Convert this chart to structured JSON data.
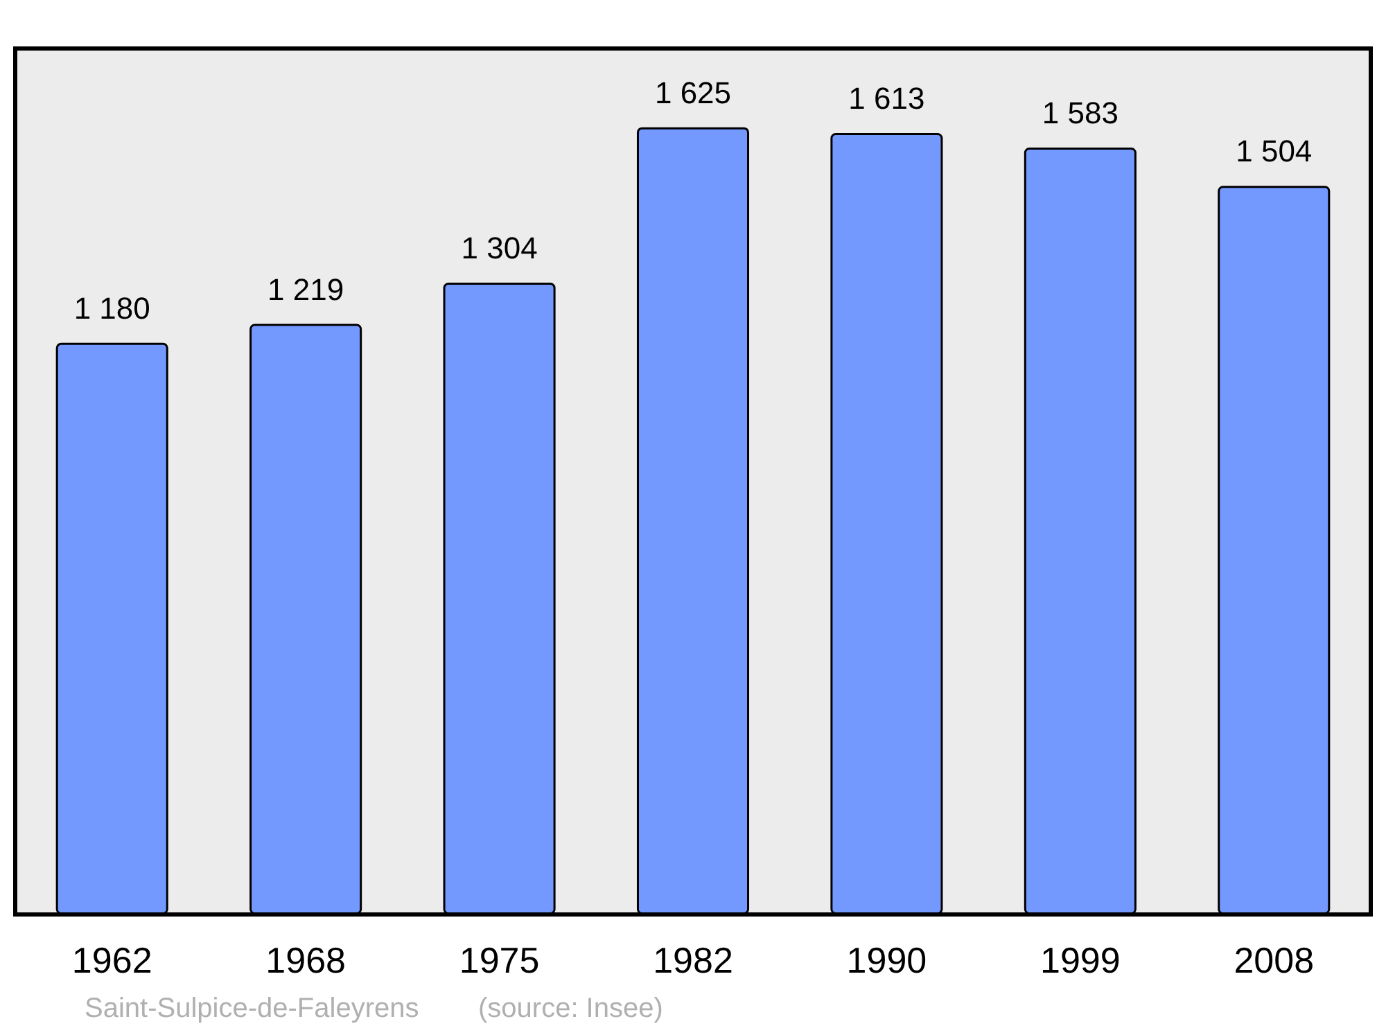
{
  "chart_data": {
    "type": "bar",
    "categories": [
      "1962",
      "1968",
      "1975",
      "1982",
      "1990",
      "1999",
      "2008"
    ],
    "values": [
      1180,
      1219,
      1304,
      1625,
      1613,
      1583,
      1504
    ],
    "value_labels": [
      "1 180",
      "1 219",
      "1 304",
      "1 625",
      "1 613",
      "1 583",
      "1 504"
    ],
    "color": "#7399ff",
    "grid": false,
    "annotations": [
      "Saint-Sulpice-de-Faleyrens",
      "(source: Insee)"
    ]
  }
}
